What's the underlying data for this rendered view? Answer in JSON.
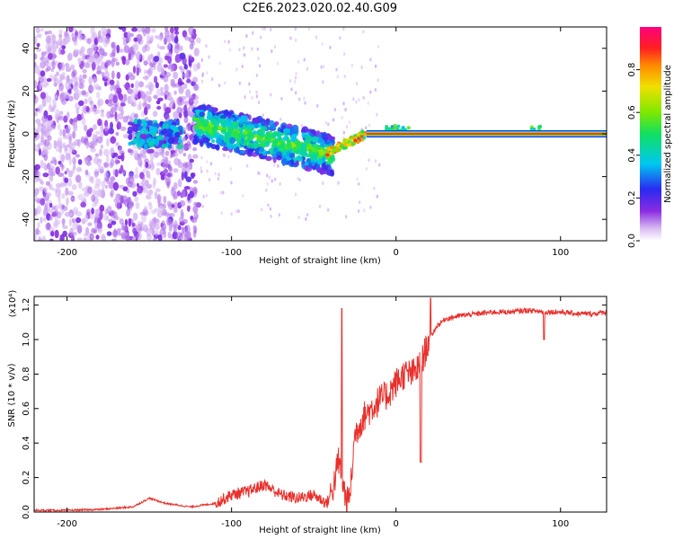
{
  "title": "C2E6.2023.020.02.40.G09",
  "colors": {
    "snr_line": "#e8302c",
    "axis": "#000000",
    "background": "#ffffff"
  },
  "chart_data": [
    {
      "type": "heatmap",
      "title": "C2E6.2023.020.02.40.G09",
      "xlabel": "Height of straight line (km)",
      "ylabel": "Frequency (Hz)",
      "xlim": [
        -220,
        128
      ],
      "ylim": [
        -50,
        50
      ],
      "x_ticks": [
        -200,
        -100,
        0,
        100
      ],
      "y_ticks": [
        -40,
        -20,
        0,
        20,
        40
      ],
      "colorbar": {
        "label": "Normalized spectral amplitude",
        "range": [
          0.0,
          1.0
        ],
        "ticks": [
          "0.0",
          "0.2",
          "0.4",
          "0.6",
          "0.8"
        ],
        "colormap": "white-violet-blue-cyan-green-yellow-orange-red-magenta"
      },
      "features": [
        {
          "x_range": [
            -220,
            -120
          ],
          "freq_range": [
            -50,
            50
          ],
          "amplitude": "low, scattered noise"
        },
        {
          "x_range": [
            -160,
            -130
          ],
          "freq_center": 0,
          "amplitude": "0.2-0.45"
        },
        {
          "x_range": [
            -120,
            -40
          ],
          "freq_center_start": 5,
          "freq_center_end": -12,
          "amplitude": "0.2-0.6"
        },
        {
          "x_range": [
            -40,
            -18
          ],
          "freq_center_start": -8,
          "freq_center_end": 0,
          "amplitude": "0.5-0.9"
        },
        {
          "x_range": [
            -18,
            128
          ],
          "freq_center": 0,
          "amplitude": "1.0 (strong carrier line)"
        }
      ]
    },
    {
      "type": "line",
      "xlabel": "Height of straight line (km)",
      "ylabel": "SNR (10 * v/v)",
      "y_multiplier": "(x10⁴)",
      "xlim": [
        -220,
        128
      ],
      "ylim": [
        0.0,
        1.25
      ],
      "x_ticks": [
        -200,
        -100,
        0,
        100
      ],
      "y_ticks": [
        "0.0",
        "0.2",
        "0.4",
        "0.6",
        "0.8",
        "1.0",
        "1.2"
      ],
      "series": [
        {
          "x": [
            -220,
            -200,
            -180,
            -160,
            -150,
            -140,
            -125,
            -110,
            -100,
            -90,
            -80,
            -70,
            -60,
            -50,
            -42,
            -38,
            -35,
            -33,
            -30,
            -28,
            -25,
            -20,
            -15,
            -10,
            -5,
            0,
            5,
            10,
            15,
            20,
            25,
            30,
            40,
            50,
            60,
            70,
            80,
            90,
            100,
            110,
            120,
            128
          ],
          "y": [
            0.01,
            0.01,
            0.015,
            0.03,
            0.08,
            0.05,
            0.03,
            0.05,
            0.1,
            0.12,
            0.16,
            0.1,
            0.08,
            0.1,
            0.05,
            0.15,
            0.3,
            0.2,
            0.05,
            0.1,
            0.45,
            0.55,
            0.6,
            0.65,
            0.68,
            0.75,
            0.8,
            0.8,
            0.85,
            1.0,
            1.08,
            1.12,
            1.14,
            1.15,
            1.16,
            1.16,
            1.17,
            1.16,
            1.16,
            1.15,
            1.15,
            1.16
          ]
        }
      ]
    }
  ]
}
